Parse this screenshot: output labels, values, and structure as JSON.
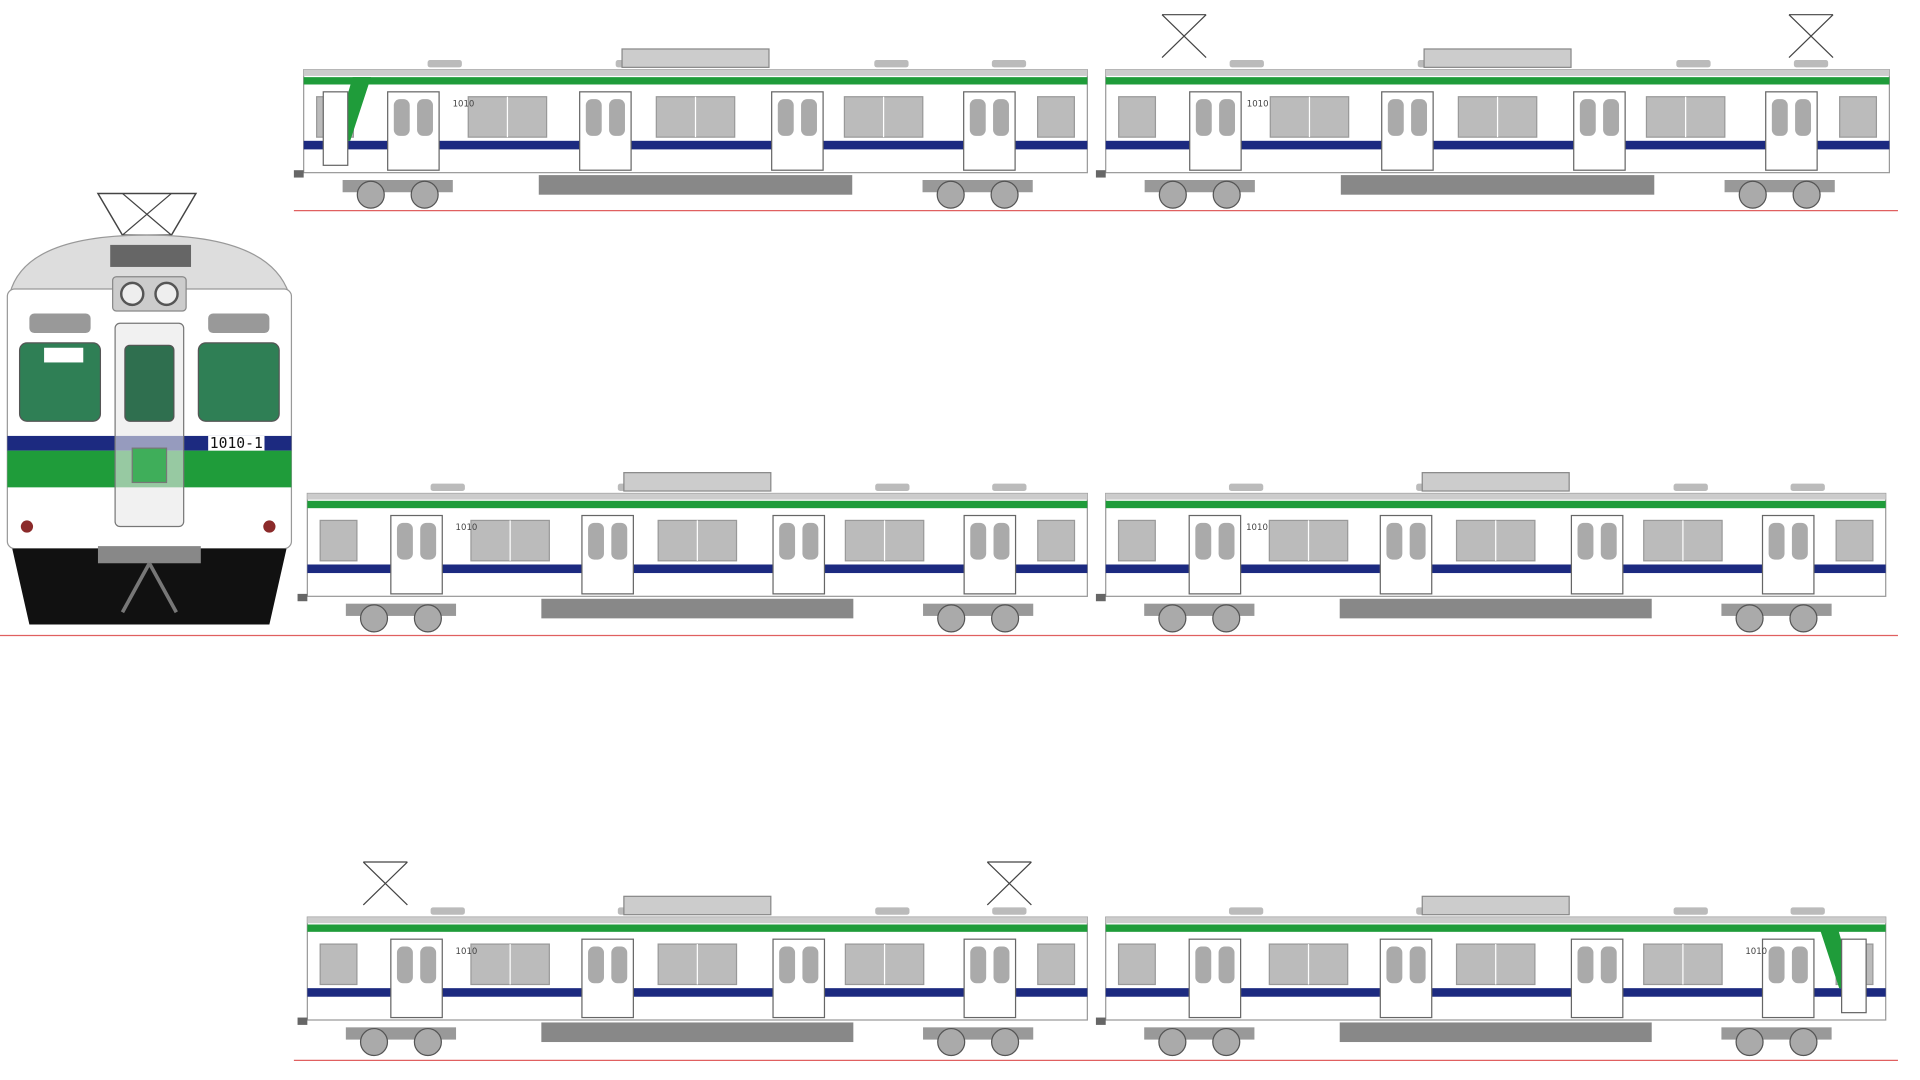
{
  "front": {
    "number": "1010-1"
  },
  "cars": [
    {
      "number": "1010"
    },
    {
      "number": "1010"
    },
    {
      "number": "1010"
    },
    {
      "number": "1010"
    },
    {
      "number": "1010"
    },
    {
      "number": "1010"
    }
  ]
}
